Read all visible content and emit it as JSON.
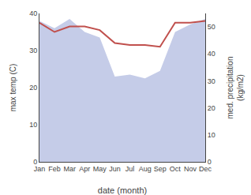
{
  "chart_data": {
    "type": "line",
    "categories": [
      "Jan",
      "Feb",
      "Mar",
      "Apr",
      "May",
      "Jun",
      "Jul",
      "Aug",
      "Sep",
      "Oct",
      "Nov",
      "Dec"
    ],
    "series": [
      {
        "type": "area",
        "color": "#c5cce8",
        "values": [
          38.0,
          36.0,
          38.5,
          35.0,
          33.5,
          23.0,
          23.5,
          22.5,
          24.5,
          35.0,
          37.0,
          38.5
        ]
      },
      {
        "type": "line",
        "color": "#c0504d",
        "values": [
          37.5,
          35.0,
          36.5,
          36.5,
          35.5,
          32.0,
          31.5,
          31.5,
          31.0,
          37.5,
          37.5,
          38.0
        ]
      }
    ],
    "xlabel": "date (month)",
    "ylabel": "max temp (C)",
    "y2label": "med. precipitation\n(kg/m2)",
    "ylim": [
      0,
      40
    ],
    "yticks": [
      0,
      10,
      20,
      30,
      40
    ],
    "y2lim": [
      0,
      55
    ],
    "y2ticks": [
      0,
      10,
      20,
      30,
      40,
      50
    ],
    "grid": false
  }
}
